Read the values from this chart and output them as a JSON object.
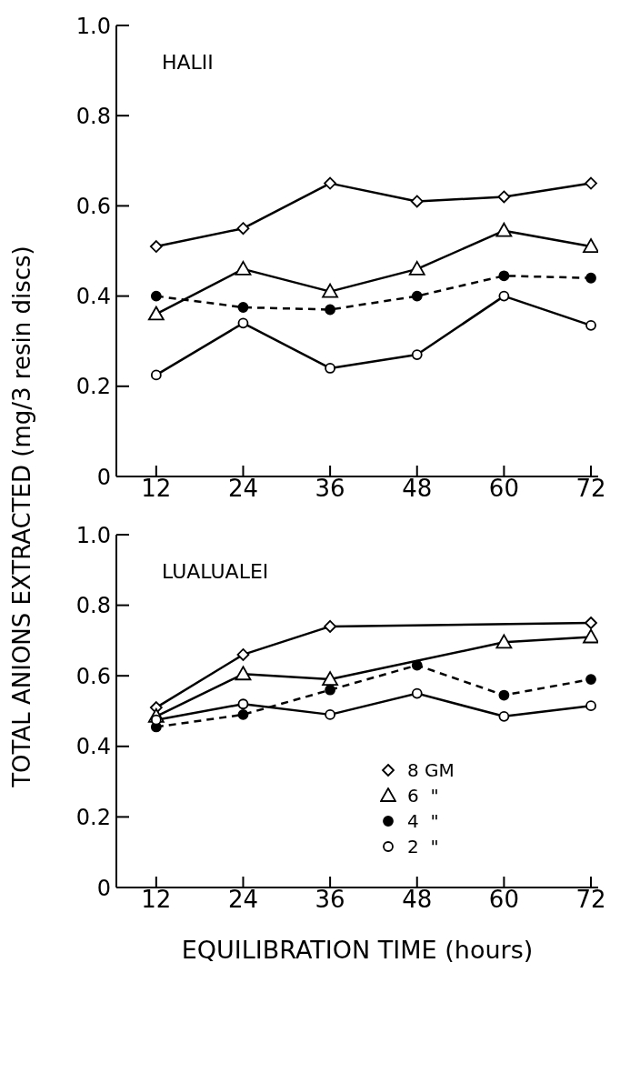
{
  "chart_data": [
    {
      "type": "line",
      "title": "HALII",
      "ylabel": "TOTAL ANIONS EXTRACTED (mg/3 resin discs)",
      "x": [
        12,
        24,
        36,
        48,
        60,
        72
      ],
      "xlim": [
        6.5,
        73
      ],
      "xticks": [
        12,
        24,
        36,
        48,
        60,
        72
      ],
      "ylim": [
        0,
        1
      ],
      "yticks": [
        0,
        {
          "value": 0.2,
          "label": "0.2"
        },
        {
          "value": 0.4,
          "label": "0.4"
        },
        {
          "value": 0.6,
          "label": "0.6"
        },
        {
          "value": 0.8,
          "label": "0.8"
        },
        {
          "value": 1,
          "label": "1.0"
        }
      ],
      "grid": false,
      "legend": false,
      "series": [
        {
          "color": "#000000",
          "marker": "diamond",
          "colors": [
            "#ffffff",
            "#ffffff",
            "#ffffff",
            "#ffffff",
            "#ffffff",
            "#ffffff"
          ],
          "line_style": "solid",
          "values": [
            0.51,
            0.55,
            0.65,
            0.61,
            0.62,
            0.65
          ]
        },
        {
          "color": "#000000",
          "marker": "triangle",
          "colors": [
            "#ffffff",
            "#ffffff",
            "#ffffff",
            "#ffffff",
            "#ffffff",
            "#ffffff"
          ],
          "line_style": "solid",
          "values": [
            0.36,
            0.46,
            0.41,
            0.46,
            0.545,
            0.51
          ]
        },
        {
          "color": "#000000",
          "marker": "circle",
          "colors": [
            "#000000",
            "#000000",
            "#000000",
            "#000000",
            "#000000",
            "#000000"
          ],
          "line_style": "dashed",
          "values": [
            0.4,
            0.375,
            0.37,
            0.4,
            0.445,
            0.44
          ]
        },
        {
          "color": "#000000",
          "marker": "circle",
          "colors": [
            "#ffffff",
            "#ffffff",
            "#ffffff",
            "#ffffff",
            "#ffffff",
            "#ffffff"
          ],
          "line_style": "solid",
          "values": [
            0.225,
            0.34,
            0.24,
            0.27,
            0.4,
            0.335
          ]
        }
      ]
    },
    {
      "type": "line",
      "title": "LUALUALEI",
      "xlabel": "EQUILIBRATION TIME (hours)",
      "x": [
        12,
        24,
        36,
        48,
        60,
        72
      ],
      "xlim": [
        6.5,
        73
      ],
      "xticks": [
        12,
        24,
        36,
        48,
        60,
        72
      ],
      "ylim": [
        0,
        1
      ],
      "yticks": [
        0,
        {
          "value": 0.2,
          "label": "0.2"
        },
        {
          "value": 0.4,
          "label": "0.4"
        },
        {
          "value": 0.6,
          "label": "0.6"
        },
        {
          "value": 0.8,
          "label": "0.8"
        },
        {
          "value": 1,
          "label": "1.0"
        }
      ],
      "grid": false,
      "legend": "bottom right",
      "series": [
        {
          "name": "8 GM",
          "color": "#000000",
          "marker": "diamond",
          "colors": [
            "#ffffff",
            "#ffffff",
            "#ffffff",
            null,
            null,
            "#ffffff"
          ],
          "line_style": "solid",
          "values": [
            0.51,
            0.66,
            0.74,
            null,
            null,
            0.75
          ]
        },
        {
          "name": "6  \"",
          "color": "#000000",
          "marker": "triangle",
          "colors": [
            "#ffffff",
            "#ffffff",
            "#ffffff",
            null,
            "#ffffff",
            "#ffffff"
          ],
          "line_style": "solid",
          "values": [
            0.485,
            0.605,
            0.59,
            null,
            0.695,
            0.71
          ]
        },
        {
          "name": "4  \"",
          "color": "#000000",
          "marker": "circle",
          "colors": [
            "#000000",
            "#000000",
            "#000000",
            "#000000",
            "#000000",
            "#000000"
          ],
          "line_style": "dashed",
          "values": [
            0.455,
            0.49,
            0.56,
            0.63,
            0.545,
            0.59
          ]
        },
        {
          "name": "2  \"",
          "color": "#000000",
          "marker": "circle",
          "colors": [
            "#ffffff",
            "#ffffff",
            "#ffffff",
            "#ffffff",
            "#ffffff",
            "#ffffff"
          ],
          "line_style": "solid",
          "values": [
            0.475,
            0.52,
            0.49,
            0.55,
            0.485,
            0.515
          ]
        }
      ]
    }
  ]
}
